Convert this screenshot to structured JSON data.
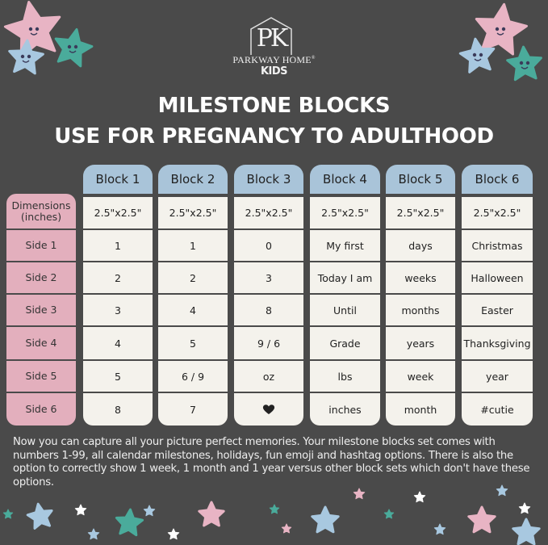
{
  "brand": {
    "monogram": "PK",
    "name": "PARKWAY HOME",
    "registered": "®",
    "sub": "KIDS"
  },
  "title": {
    "line1": "MILESTONE BLOCKS",
    "line2": "USE FOR PREGNANCY TO ADULTHOOD"
  },
  "table": {
    "columns": [
      "Block 1",
      "Block 2",
      "Block 3",
      "Block 4",
      "Block 5",
      "Block 6"
    ],
    "row_labels": [
      "Dimensions (inches)",
      "Side 1",
      "Side 2",
      "Side 3",
      "Side 4",
      "Side 5",
      "Side 6"
    ],
    "rows": [
      [
        "2.5\"x2.5\"",
        "2.5\"x2.5\"",
        "2.5\"x2.5\"",
        "2.5\"x2.5\"",
        "2.5\"x2.5\"",
        "2.5\"x2.5\""
      ],
      [
        "1",
        "1",
        "0",
        "My first",
        "days",
        "Christmas"
      ],
      [
        "2",
        "2",
        "3",
        "Today I am",
        "weeks",
        "Halloween"
      ],
      [
        "3",
        "4",
        "8",
        "Until",
        "months",
        "Easter"
      ],
      [
        "4",
        "5",
        "9 / 6",
        "Grade",
        "years",
        "Thanksgiving"
      ],
      [
        "5",
        "6 / 9",
        "oz",
        "lbs",
        "week",
        "year"
      ],
      [
        "8",
        "7",
        "heart-icon",
        "inches",
        "month",
        "#cutie"
      ]
    ]
  },
  "description": "Now you can capture all your picture perfect memories. Your milestone blocks set comes with numbers 1-99, all calendar milestones, holidays, fun emoji and hashtag options. There is also the option to correctly show 1 week, 1 month and 1 year versus other block sets which don't have these options.",
  "colors": {
    "background": "#4a4a4a",
    "header_blue": "#a9c4d9",
    "label_pink": "#e3afbd",
    "cell_cream": "#f4f2ec",
    "star_pink": "#e8b4c4",
    "star_blue": "#a8c8e0",
    "star_teal": "#4aab9b",
    "star_white": "#ffffff"
  }
}
